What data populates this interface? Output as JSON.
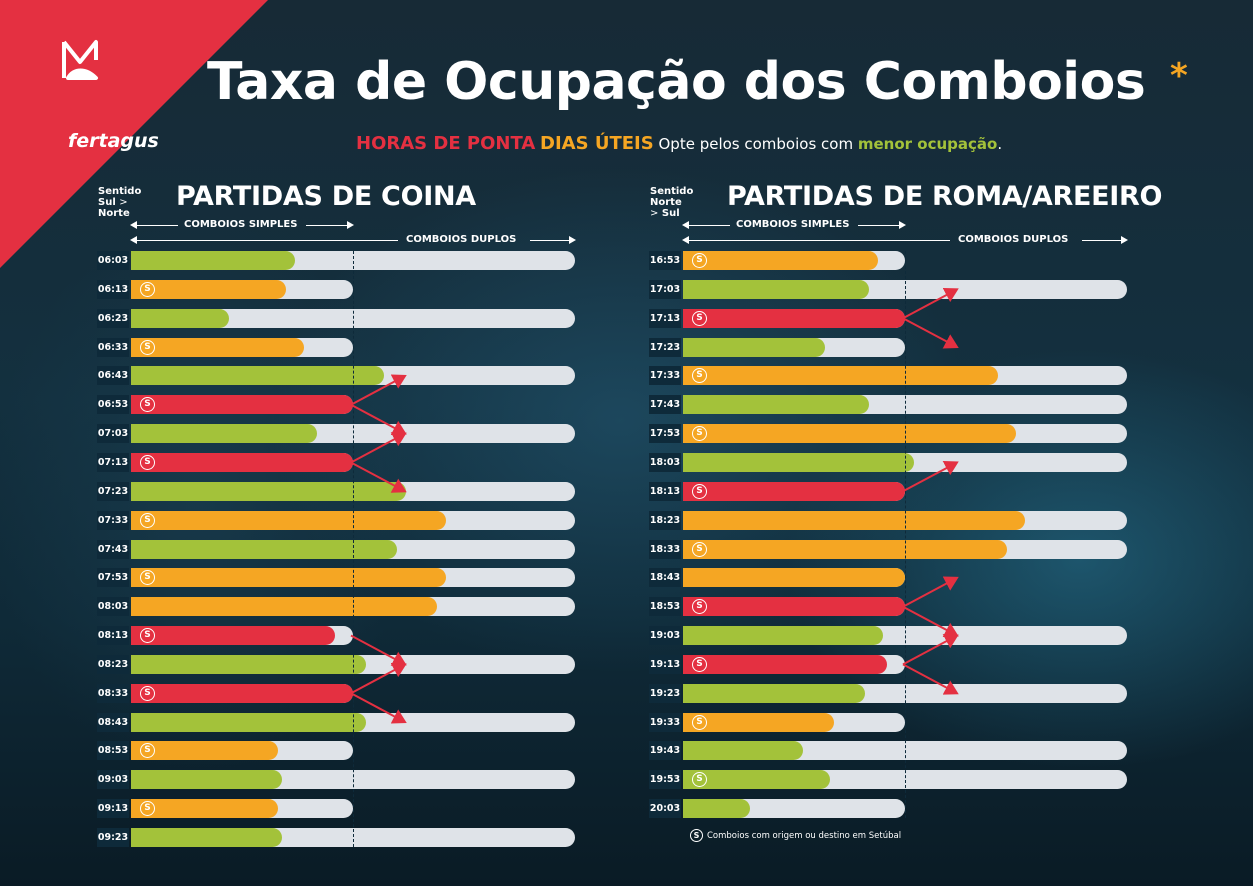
{
  "brand": {
    "name": "fertagus"
  },
  "title": "Taxa de Ocupação dos Comboios",
  "title_mark": "*",
  "subtitle": {
    "part1": "HORAS DE PONTA",
    "part2": "DIAS ÚTEIS",
    "part3": "Opte pelos comboios com",
    "part4": "menor ocupação",
    "part5": "."
  },
  "colors": {
    "green": "#a3c23a",
    "orange": "#f5a623",
    "red": "#e43041",
    "track": "#dfe3e8"
  },
  "legend": {
    "simples": "COMBOIOS SIMPLES",
    "duplos": "COMBOIOS DUPLOS"
  },
  "footnote": "Comboios com origem ou destino em Setúbal",
  "setubal_mark": "S",
  "chart_data": [
    {
      "type": "bar",
      "title": "PARTIDAS DE COINA",
      "direction": {
        "l1": "Sentido",
        "l2a": "Sul",
        "l2b": "Norte",
        "sep": ">"
      },
      "unit_note": "occupancy level; length 1.0 = comboio duplo capacity, 0.5 = comboio simples capacity",
      "rows": [
        {
          "time": "06:03",
          "s": false,
          "doble": true,
          "level": "green",
          "value": 0.37
        },
        {
          "time": "06:13",
          "s": true,
          "doble": false,
          "level": "orange",
          "value": 0.35
        },
        {
          "time": "06:23",
          "s": false,
          "doble": true,
          "level": "green",
          "value": 0.22
        },
        {
          "time": "06:33",
          "s": true,
          "doble": false,
          "level": "orange",
          "value": 0.39
        },
        {
          "time": "06:43",
          "s": false,
          "doble": true,
          "level": "green",
          "value": 0.57
        },
        {
          "time": "06:53",
          "s": true,
          "doble": false,
          "level": "red",
          "value": 0.5
        },
        {
          "time": "07:03",
          "s": false,
          "doble": true,
          "level": "green",
          "value": 0.42
        },
        {
          "time": "07:13",
          "s": true,
          "doble": false,
          "level": "red",
          "value": 0.5
        },
        {
          "time": "07:23",
          "s": false,
          "doble": true,
          "level": "green",
          "value": 0.62
        },
        {
          "time": "07:33",
          "s": true,
          "doble": true,
          "level": "orange",
          "value": 0.71
        },
        {
          "time": "07:43",
          "s": false,
          "doble": true,
          "level": "green",
          "value": 0.6
        },
        {
          "time": "07:53",
          "s": true,
          "doble": true,
          "level": "orange",
          "value": 0.71
        },
        {
          "time": "08:03",
          "s": false,
          "doble": true,
          "level": "orange",
          "value": 0.69
        },
        {
          "time": "08:13",
          "s": true,
          "doble": false,
          "level": "red",
          "value": 0.46
        },
        {
          "time": "08:23",
          "s": false,
          "doble": true,
          "level": "green",
          "value": 0.53
        },
        {
          "time": "08:33",
          "s": true,
          "doble": false,
          "level": "red",
          "value": 0.5
        },
        {
          "time": "08:43",
          "s": false,
          "doble": true,
          "level": "green",
          "value": 0.53
        },
        {
          "time": "08:53",
          "s": true,
          "doble": false,
          "level": "orange",
          "value": 0.33
        },
        {
          "time": "09:03",
          "s": false,
          "doble": true,
          "level": "green",
          "value": 0.34
        },
        {
          "time": "09:13",
          "s": true,
          "doble": false,
          "level": "orange",
          "value": 0.33
        },
        {
          "time": "09:23",
          "s": false,
          "doble": true,
          "level": "green",
          "value": 0.34
        }
      ],
      "transfers": [
        [
          5,
          4
        ],
        [
          5,
          6
        ],
        [
          7,
          6
        ],
        [
          7,
          8
        ],
        [
          13,
          14
        ],
        [
          15,
          14
        ],
        [
          15,
          16
        ]
      ]
    },
    {
      "type": "bar",
      "title": "PARTIDAS DE ROMA/AREEIRO",
      "direction": {
        "l1": "Sentido",
        "l2a": "Norte",
        "l2b": "Sul",
        "sep": ">"
      },
      "unit_note": "occupancy level; length 1.0 = comboio duplo capacity, 0.5 = comboio simples capacity",
      "rows": [
        {
          "time": "16:53",
          "s": true,
          "doble": false,
          "level": "orange",
          "value": 0.44
        },
        {
          "time": "17:03",
          "s": false,
          "doble": true,
          "level": "green",
          "value": 0.42
        },
        {
          "time": "17:13",
          "s": true,
          "doble": false,
          "level": "red",
          "value": 0.5
        },
        {
          "time": "17:23",
          "s": false,
          "doble": false,
          "level": "green",
          "value": 0.32
        },
        {
          "time": "17:33",
          "s": true,
          "doble": true,
          "level": "orange",
          "value": 0.71
        },
        {
          "time": "17:43",
          "s": false,
          "doble": true,
          "level": "green",
          "value": 0.42
        },
        {
          "time": "17:53",
          "s": true,
          "doble": true,
          "level": "orange",
          "value": 0.75
        },
        {
          "time": "18:03",
          "s": false,
          "doble": true,
          "level": "green",
          "value": 0.52
        },
        {
          "time": "18:13",
          "s": true,
          "doble": false,
          "level": "red",
          "value": 0.5
        },
        {
          "time": "18:23",
          "s": false,
          "doble": true,
          "level": "orange",
          "value": 0.77
        },
        {
          "time": "18:33",
          "s": true,
          "doble": true,
          "level": "orange",
          "value": 0.73
        },
        {
          "time": "18:43",
          "s": false,
          "doble": false,
          "level": "orange",
          "value": 0.5
        },
        {
          "time": "18:53",
          "s": true,
          "doble": false,
          "level": "red",
          "value": 0.5
        },
        {
          "time": "19:03",
          "s": false,
          "doble": true,
          "level": "green",
          "value": 0.45
        },
        {
          "time": "19:13",
          "s": true,
          "doble": false,
          "level": "red",
          "value": 0.46
        },
        {
          "time": "19:23",
          "s": false,
          "doble": true,
          "level": "green",
          "value": 0.41
        },
        {
          "time": "19:33",
          "s": true,
          "doble": false,
          "level": "orange",
          "value": 0.34
        },
        {
          "time": "19:43",
          "s": false,
          "doble": true,
          "level": "green",
          "value": 0.27
        },
        {
          "time": "19:53",
          "s": true,
          "doble": true,
          "level": "green",
          "value": 0.33
        },
        {
          "time": "20:03",
          "s": false,
          "doble": false,
          "level": "green",
          "value": 0.15
        }
      ],
      "transfers": [
        [
          2,
          1
        ],
        [
          2,
          3
        ],
        [
          8,
          7
        ],
        [
          12,
          11
        ],
        [
          12,
          13
        ],
        [
          14,
          13
        ],
        [
          14,
          15
        ]
      ]
    }
  ]
}
